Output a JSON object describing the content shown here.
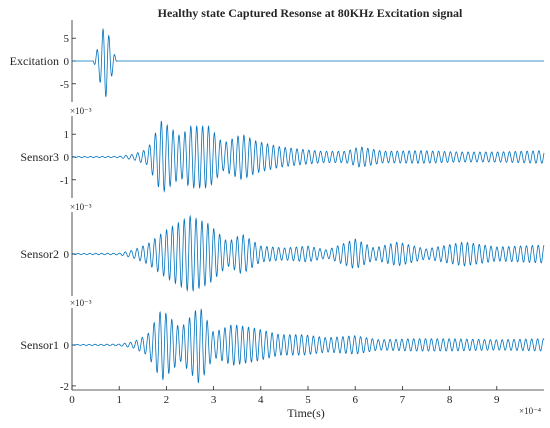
{
  "chart_data": {
    "type": "line",
    "title": "Healthy state Captured Resonse at 80KHz Excitation signal",
    "xlabel": "Time(s)",
    "x_exponent": "×10⁻⁴",
    "xlim": [
      0,
      10
    ],
    "xticks": [
      "0",
      "1",
      "2",
      "3",
      "4",
      "5",
      "6",
      "7",
      "8",
      "9"
    ],
    "line_color": "#0072bd",
    "panels": [
      {
        "name": "Excitation",
        "ylabel": "Excitation",
        "exponent": "",
        "ylim": [
          -9,
          9
        ],
        "yticks": [
          {
            "v": 5,
            "label": "5"
          },
          {
            "v": 0,
            "label": "0"
          },
          {
            "v": -5,
            "label": "-5"
          }
        ],
        "envelope": [
          {
            "t": 0.45,
            "a": 0
          },
          {
            "t": 0.55,
            "a": 3
          },
          {
            "t": 0.7,
            "a": 8.5
          },
          {
            "t": 0.85,
            "a": 3
          },
          {
            "t": 0.95,
            "a": 0
          },
          {
            "t": 10,
            "a": 0
          }
        ],
        "freq": 8
      },
      {
        "name": "Sensor3",
        "ylabel": "Sensor3",
        "exponent": "×10⁻³",
        "ylim": [
          -1.8,
          1.8
        ],
        "yticks": [
          {
            "v": 1,
            "label": "1"
          },
          {
            "v": 0,
            "label": "0"
          },
          {
            "v": -1,
            "label": "-1"
          }
        ],
        "envelope": [
          {
            "t": 0,
            "a": 0.02
          },
          {
            "t": 1.0,
            "a": 0.03
          },
          {
            "t": 1.3,
            "a": 0.12
          },
          {
            "t": 1.6,
            "a": 0.35
          },
          {
            "t": 1.9,
            "a": 1.6
          },
          {
            "t": 2.3,
            "a": 0.9
          },
          {
            "t": 2.5,
            "a": 1.35
          },
          {
            "t": 2.9,
            "a": 1.35
          },
          {
            "t": 3.2,
            "a": 0.6
          },
          {
            "t": 3.6,
            "a": 1.0
          },
          {
            "t": 3.9,
            "a": 0.7
          },
          {
            "t": 4.4,
            "a": 0.45
          },
          {
            "t": 4.8,
            "a": 0.35
          },
          {
            "t": 5.3,
            "a": 0.25
          },
          {
            "t": 5.8,
            "a": 0.25
          },
          {
            "t": 6.1,
            "a": 0.45
          },
          {
            "t": 6.6,
            "a": 0.25
          },
          {
            "t": 7.4,
            "a": 0.28
          },
          {
            "t": 8.2,
            "a": 0.22
          },
          {
            "t": 9.0,
            "a": 0.22
          },
          {
            "t": 10.0,
            "a": 0.28
          }
        ],
        "freq": 8
      },
      {
        "name": "Sensor2",
        "ylabel": "Sensor2",
        "exponent": "×10⁻³",
        "ylim": [
          -2.1,
          2.1
        ],
        "yticks": [
          {
            "v": 0,
            "label": "0"
          }
        ],
        "envelope": [
          {
            "t": 0,
            "a": 0.03
          },
          {
            "t": 1.0,
            "a": 0.04
          },
          {
            "t": 1.3,
            "a": 0.2
          },
          {
            "t": 1.6,
            "a": 0.5
          },
          {
            "t": 2.0,
            "a": 1.2
          },
          {
            "t": 2.5,
            "a": 1.9
          },
          {
            "t": 2.9,
            "a": 1.5
          },
          {
            "t": 3.3,
            "a": 0.6
          },
          {
            "t": 3.6,
            "a": 1.0
          },
          {
            "t": 4.0,
            "a": 0.4
          },
          {
            "t": 4.5,
            "a": 0.3
          },
          {
            "t": 5.0,
            "a": 0.4
          },
          {
            "t": 5.4,
            "a": 0.2
          },
          {
            "t": 6.0,
            "a": 0.75
          },
          {
            "t": 6.4,
            "a": 0.3
          },
          {
            "t": 6.9,
            "a": 0.6
          },
          {
            "t": 7.5,
            "a": 0.25
          },
          {
            "t": 8.3,
            "a": 0.6
          },
          {
            "t": 9.0,
            "a": 0.35
          },
          {
            "t": 10.0,
            "a": 0.45
          }
        ],
        "freq": 8
      },
      {
        "name": "Sensor1",
        "ylabel": "Sensor1",
        "exponent": "×10⁻³",
        "ylim": [
          -2.2,
          1.8
        ],
        "yticks": [
          {
            "v": 0,
            "label": "0"
          },
          {
            "v": -2,
            "label": "-2"
          }
        ],
        "envelope": [
          {
            "t": 0,
            "a": 0.02
          },
          {
            "t": 1.0,
            "a": 0.04
          },
          {
            "t": 1.3,
            "a": 0.15
          },
          {
            "t": 1.6,
            "a": 0.5
          },
          {
            "t": 1.9,
            "a": 1.75
          },
          {
            "t": 2.3,
            "a": 0.8
          },
          {
            "t": 2.7,
            "a": 1.9
          },
          {
            "t": 3.0,
            "a": 0.6
          },
          {
            "t": 3.4,
            "a": 1.0
          },
          {
            "t": 3.9,
            "a": 0.8
          },
          {
            "t": 4.4,
            "a": 0.5
          },
          {
            "t": 4.9,
            "a": 0.5
          },
          {
            "t": 5.4,
            "a": 0.35
          },
          {
            "t": 6.0,
            "a": 0.45
          },
          {
            "t": 6.5,
            "a": 0.25
          },
          {
            "t": 7.2,
            "a": 0.3
          },
          {
            "t": 8.0,
            "a": 0.3
          },
          {
            "t": 9.0,
            "a": 0.25
          },
          {
            "t": 10.0,
            "a": 0.3
          }
        ],
        "freq": 8
      }
    ]
  }
}
